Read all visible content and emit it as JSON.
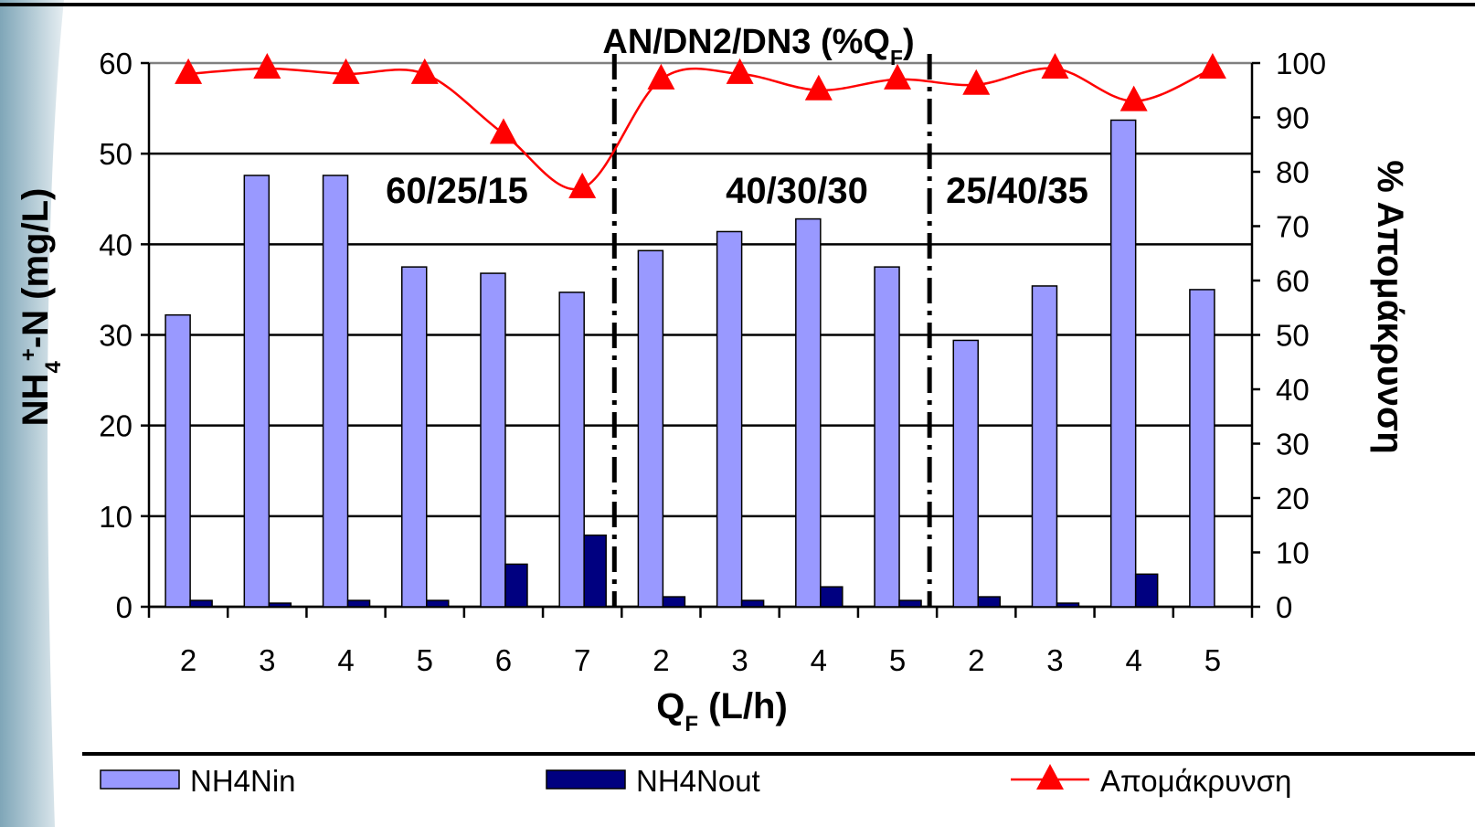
{
  "chart_data": {
    "type": "bar",
    "title": [
      {
        "text": "AN/DN2/DN3 (%Q"
      },
      {
        "text": "F",
        "sub": true
      },
      {
        "text": ")"
      }
    ],
    "x_label": [
      {
        "text": "Q"
      },
      {
        "text": "F",
        "sub": true
      },
      {
        "text": " (L/h)"
      }
    ],
    "y_label": [
      {
        "text": "NH"
      },
      {
        "text": "4",
        "sub": true
      },
      {
        "text": "+",
        "sup": true
      },
      {
        "text": "-N (mg/L)"
      }
    ],
    "y2_label": "% Απομάκρυνση",
    "annotations": [
      "60/25/15",
      "40/30/30",
      "25/40/35"
    ],
    "categories": [
      "2",
      "3",
      "4",
      "5",
      "6",
      "7",
      "2",
      "3",
      "4",
      "5",
      "2",
      "3",
      "4",
      "5"
    ],
    "series": [
      {
        "name": "NH4Nin",
        "color": "#9999ff",
        "values": [
          32.2,
          47.6,
          47.6,
          37.5,
          36.8,
          34.7,
          39.3,
          41.4,
          42.8,
          37.5,
          29.4,
          35.4,
          53.7,
          35.0
        ]
      },
      {
        "name": "NH4Nout",
        "color": "#000080",
        "values": [
          0.7,
          0.4,
          0.7,
          0.7,
          4.7,
          7.9,
          1.1,
          0.7,
          2.2,
          0.7,
          1.1,
          0.4,
          3.6,
          0
        ]
      },
      {
        "name": "Απομάκρυνση",
        "type": "line",
        "axis": "y2",
        "color": "#ff0000",
        "values": [
          98,
          99,
          98,
          98,
          87,
          77,
          97,
          98,
          95,
          97,
          96,
          99,
          93,
          99
        ]
      }
    ],
    "ylim": [
      0,
      60
    ],
    "yticks": [
      0,
      10,
      20,
      30,
      40,
      50,
      60
    ],
    "y2lim": [
      0,
      100
    ],
    "y2ticks": [
      0,
      10,
      20,
      30,
      40,
      50,
      60,
      70,
      80,
      90,
      100
    ],
    "grid": true,
    "legend": "bottom"
  }
}
